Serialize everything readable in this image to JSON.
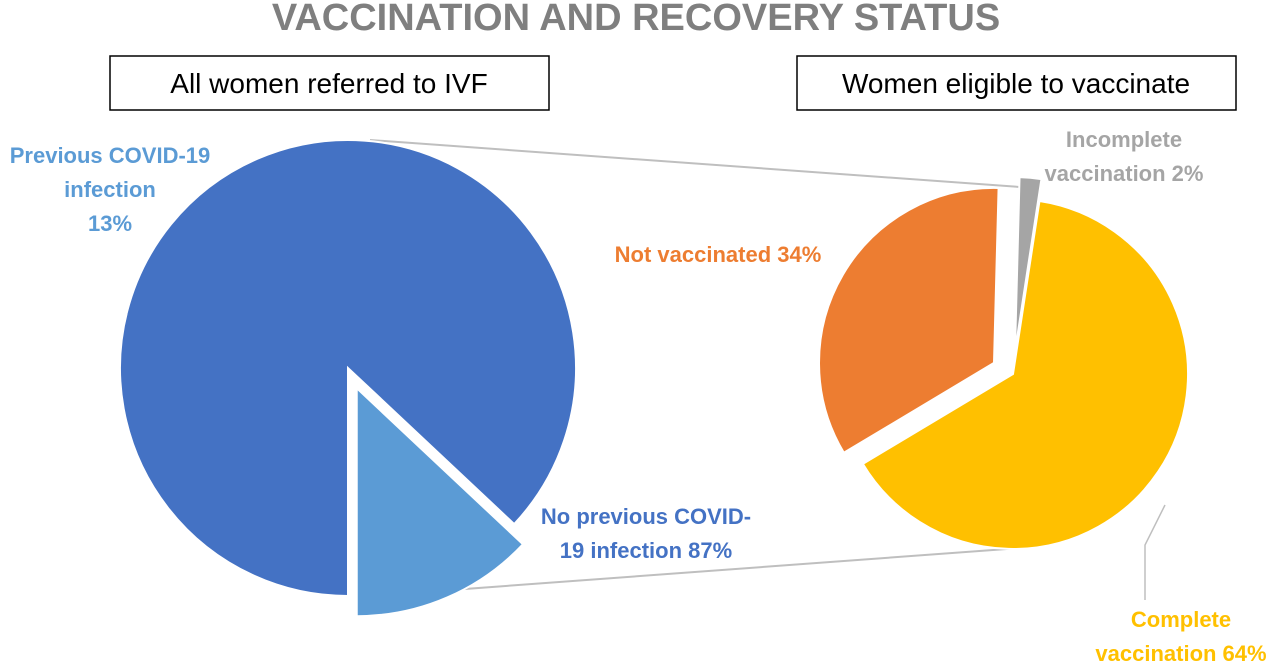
{
  "chart_data": {
    "type": "pie",
    "title": "VACCINATION AND RECOVERY STATUS",
    "pies": [
      {
        "name": "All women referred to IVF",
        "slices": [
          {
            "id": "previous",
            "label_lines": [
              "Previous COVID-19",
              "infection",
              "13%"
            ],
            "value": 13,
            "color": "#5b9bd5",
            "exploded": true
          },
          {
            "id": "no-previous",
            "label_lines": [
              "No previous COVID-",
              "19 infection 87%"
            ],
            "value": 87,
            "color": "#4472c4",
            "exploded": false
          }
        ]
      },
      {
        "name": "Women eligible to vaccinate",
        "slices": [
          {
            "id": "incomplete",
            "label_lines": [
              "Incomplete",
              "vaccination 2%"
            ],
            "value": 2,
            "color": "#a5a5a5",
            "exploded": true
          },
          {
            "id": "complete",
            "label_lines": [
              "Complete",
              "vaccination 64%"
            ],
            "value": 64,
            "color": "#ffc000",
            "exploded": false
          },
          {
            "id": "not-vaccinated",
            "label_lines": [
              "Not vaccinated 34%"
            ],
            "value": 34,
            "color": "#ed7d31",
            "exploded": true
          }
        ]
      }
    ],
    "label_colors": {
      "previous": "#5b9bd5",
      "no-previous": "#4472c4",
      "incomplete": "#a5a5a5",
      "complete": "#ffc000",
      "not-vaccinated": "#ed7d31"
    }
  }
}
